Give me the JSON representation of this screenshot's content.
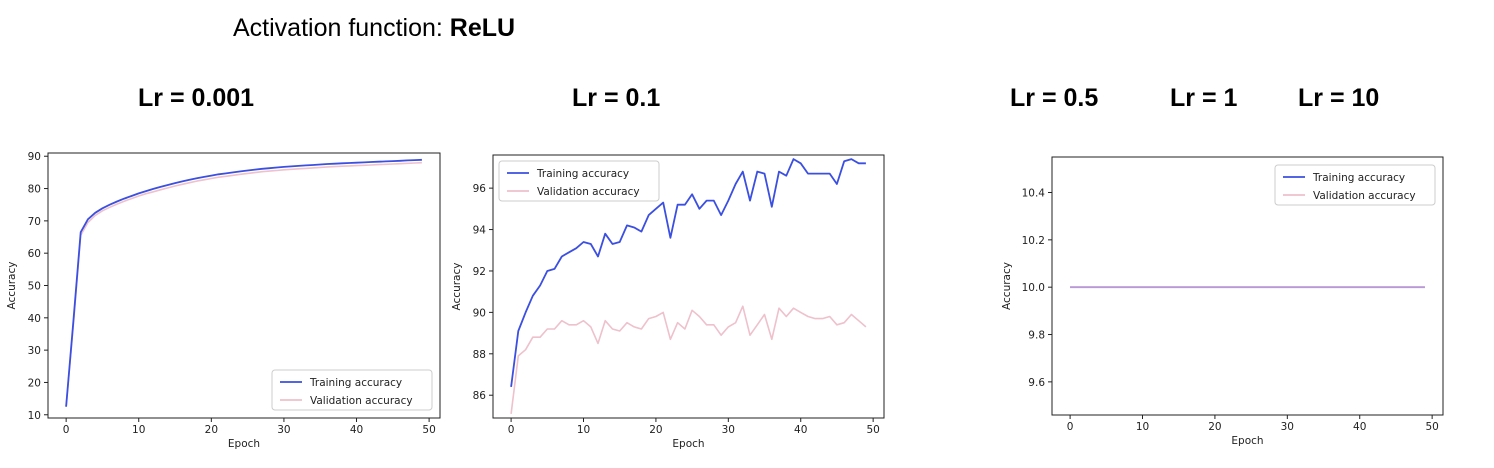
{
  "header": {
    "title_prefix": "Activation function: ",
    "title_activation": "ReLU",
    "lr_labels": [
      "Lr = 0.001",
      "Lr = 0.1",
      "Lr = 0.5",
      "Lr = 1",
      "Lr = 10"
    ]
  },
  "colors": {
    "training": "#3b4fe0",
    "validation": "#eec1cc",
    "overlap": "#b99ad6"
  },
  "chart_data": [
    {
      "type": "line",
      "xlabel": "Epoch",
      "ylabel": "Accuracy",
      "xlim": [
        -2.5,
        51.5
      ],
      "ylim": [
        9,
        91
      ],
      "xticks": [
        0,
        10,
        20,
        30,
        40,
        50
      ],
      "yticks": [
        10,
        20,
        30,
        40,
        50,
        60,
        70,
        80,
        90
      ],
      "ytick_labels": [
        "10",
        "20",
        "30",
        "40",
        "50",
        "60",
        "70",
        "80",
        "90"
      ],
      "legend_position": "lower-right",
      "series": [
        {
          "name": "Training accuracy",
          "x": [
            0,
            1,
            2,
            3,
            4,
            5,
            6,
            7,
            8,
            9,
            10,
            11,
            12,
            13,
            14,
            15,
            16,
            17,
            18,
            19,
            20,
            21,
            22,
            23,
            24,
            25,
            26,
            27,
            28,
            29,
            30,
            31,
            32,
            33,
            34,
            35,
            36,
            37,
            38,
            39,
            40,
            41,
            42,
            43,
            44,
            45,
            46,
            47,
            48,
            49
          ],
          "values": [
            12.5,
            39,
            66.5,
            70.5,
            72.5,
            73.9,
            75,
            76,
            76.9,
            77.7,
            78.5,
            79.2,
            79.9,
            80.5,
            81.1,
            81.7,
            82.2,
            82.7,
            83.2,
            83.6,
            84,
            84.4,
            84.7,
            85,
            85.3,
            85.6,
            85.85,
            86.1,
            86.3,
            86.5,
            86.7,
            86.85,
            87,
            87.15,
            87.3,
            87.45,
            87.6,
            87.7,
            87.8,
            87.9,
            88,
            88.1,
            88.2,
            88.3,
            88.4,
            88.5,
            88.6,
            88.7,
            88.8,
            88.9
          ]
        },
        {
          "name": "Validation accuracy",
          "x": [
            0,
            1,
            2,
            3,
            4,
            5,
            6,
            7,
            8,
            9,
            10,
            11,
            12,
            13,
            14,
            15,
            16,
            17,
            18,
            19,
            20,
            21,
            22,
            23,
            24,
            25,
            26,
            27,
            28,
            29,
            30,
            31,
            32,
            33,
            34,
            35,
            36,
            37,
            38,
            39,
            40,
            41,
            42,
            43,
            44,
            45,
            46,
            47,
            48,
            49
          ],
          "values": [
            12.5,
            38,
            65.5,
            69.5,
            71.7,
            73.1,
            74.2,
            75.2,
            76.1,
            76.9,
            77.7,
            78.4,
            79,
            79.6,
            80.2,
            80.8,
            81.3,
            81.8,
            82.3,
            82.7,
            83.1,
            83.5,
            83.8,
            84.1,
            84.4,
            84.7,
            84.95,
            85.2,
            85.4,
            85.6,
            85.8,
            85.95,
            86.1,
            86.25,
            86.4,
            86.55,
            86.7,
            86.8,
            86.9,
            87,
            87.1,
            87.2,
            87.3,
            87.4,
            87.5,
            87.6,
            87.7,
            87.8,
            87.9,
            88
          ]
        }
      ]
    },
    {
      "type": "line",
      "xlabel": "Epoch",
      "ylabel": "Accuracy",
      "xlim": [
        -2.5,
        51.5
      ],
      "ylim": [
        84.9,
        97.6
      ],
      "xticks": [
        0,
        10,
        20,
        30,
        40,
        50
      ],
      "yticks": [
        86,
        88,
        90,
        92,
        94,
        96
      ],
      "ytick_labels": [
        "86",
        "88",
        "90",
        "92",
        "94",
        "96"
      ],
      "legend_position": "upper-left",
      "series": [
        {
          "name": "Training accuracy",
          "x": [
            0,
            1,
            2,
            3,
            4,
            5,
            6,
            7,
            8,
            9,
            10,
            11,
            12,
            13,
            14,
            15,
            16,
            17,
            18,
            19,
            20,
            21,
            22,
            23,
            24,
            25,
            26,
            27,
            28,
            29,
            30,
            31,
            32,
            33,
            34,
            35,
            36,
            37,
            38,
            39,
            40,
            41,
            42,
            43,
            44,
            45,
            46,
            47,
            48,
            49
          ],
          "values": [
            86.4,
            89.1,
            90,
            90.8,
            91.3,
            92,
            92.1,
            92.7,
            92.9,
            93.1,
            93.4,
            93.3,
            92.7,
            93.8,
            93.3,
            93.4,
            94.2,
            94.1,
            93.9,
            94.7,
            95,
            95.3,
            93.6,
            95.2,
            95.2,
            95.7,
            95.0,
            95.4,
            95.4,
            94.7,
            95.4,
            96.2,
            96.8,
            95.4,
            96.8,
            96.7,
            95.1,
            96.8,
            96.6,
            97.4,
            97.2,
            96.7,
            96.7,
            96.7,
            96.7,
            96.2,
            97.3,
            97.4,
            97.2,
            97.2
          ]
        },
        {
          "name": "Validation accuracy",
          "x": [
            0,
            1,
            2,
            3,
            4,
            5,
            6,
            7,
            8,
            9,
            10,
            11,
            12,
            13,
            14,
            15,
            16,
            17,
            18,
            19,
            20,
            21,
            22,
            23,
            24,
            25,
            26,
            27,
            28,
            29,
            30,
            31,
            32,
            33,
            34,
            35,
            36,
            37,
            38,
            39,
            40,
            41,
            42,
            43,
            44,
            45,
            46,
            47,
            48,
            49
          ],
          "values": [
            85.1,
            87.9,
            88.2,
            88.8,
            88.8,
            89.2,
            89.2,
            89.6,
            89.4,
            89.4,
            89.6,
            89.3,
            88.5,
            89.6,
            89.2,
            89.1,
            89.5,
            89.3,
            89.2,
            89.7,
            89.8,
            90,
            88.7,
            89.5,
            89.2,
            90.1,
            89.8,
            89.4,
            89.4,
            88.9,
            89.3,
            89.5,
            90.3,
            88.9,
            89.4,
            89.9,
            88.7,
            90.2,
            89.8,
            90.2,
            90.0,
            89.8,
            89.7,
            89.7,
            89.8,
            89.4,
            89.5,
            89.9,
            89.6,
            89.3
          ]
        }
      ]
    },
    {
      "type": "line",
      "xlabel": "Epoch",
      "ylabel": "Accuracy",
      "xlim": [
        -2.5,
        51.5
      ],
      "ylim": [
        9.46,
        10.55
      ],
      "xticks": [
        0,
        10,
        20,
        30,
        40,
        50
      ],
      "yticks": [
        9.6,
        9.8,
        10.0,
        10.2,
        10.4
      ],
      "ytick_labels": [
        "9.6",
        "9.8",
        "10.0",
        "10.2",
        "10.4"
      ],
      "legend_position": "upper-right",
      "series": [
        {
          "name": "Training accuracy",
          "x": [
            0,
            49
          ],
          "values": [
            10.0,
            10.0
          ]
        },
        {
          "name": "Validation accuracy",
          "x": [
            0,
            49
          ],
          "values": [
            10.0,
            10.0
          ]
        }
      ]
    }
  ]
}
